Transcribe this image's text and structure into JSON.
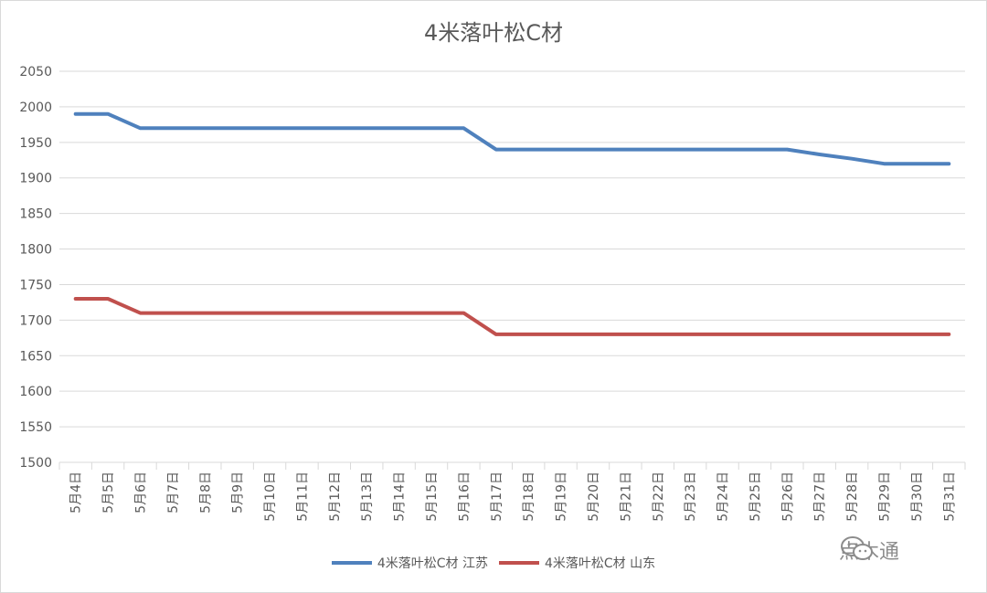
{
  "chart_data": {
    "type": "line",
    "title": "4米落叶松C材",
    "xlabel": "",
    "ylabel": "",
    "ylim": [
      1500,
      2050
    ],
    "yticks": [
      1500,
      1550,
      1600,
      1650,
      1700,
      1750,
      1800,
      1850,
      1900,
      1950,
      2000,
      2050
    ],
    "grid": true,
    "legend": "bottom",
    "categories": [
      "5月4日",
      "5月5日",
      "5月6日",
      "5月7日",
      "5月8日",
      "5月9日",
      "5月10日",
      "5月11日",
      "5月12日",
      "5月13日",
      "5月14日",
      "5月15日",
      "5月16日",
      "5月17日",
      "5月18日",
      "5月19日",
      "5月20日",
      "5月21日",
      "5月22日",
      "5月23日",
      "5月24日",
      "5月25日",
      "5月26日",
      "5月27日",
      "5月28日",
      "5月29日",
      "5月30日",
      "5月31日"
    ],
    "series": [
      {
        "name": "4米落叶松C材 江苏",
        "color": "#4f81bd",
        "values": [
          1990,
          1990,
          1970,
          1970,
          1970,
          1970,
          1970,
          1970,
          1970,
          1970,
          1970,
          1970,
          1970,
          1940,
          1940,
          1940,
          1940,
          1940,
          1940,
          1940,
          1940,
          1940,
          1940,
          1933,
          1927,
          1920,
          1920,
          1920
        ]
      },
      {
        "name": "4米落叶松C材 山东",
        "color": "#c0504d",
        "values": [
          1730,
          1730,
          1710,
          1710,
          1710,
          1710,
          1710,
          1710,
          1710,
          1710,
          1710,
          1710,
          1710,
          1680,
          1680,
          1680,
          1680,
          1680,
          1680,
          1680,
          1680,
          1680,
          1680,
          1680,
          1680,
          1680,
          1680,
          1680
        ]
      }
    ]
  },
  "watermark": {
    "text": "点木通",
    "icon": "wechat-icon"
  }
}
